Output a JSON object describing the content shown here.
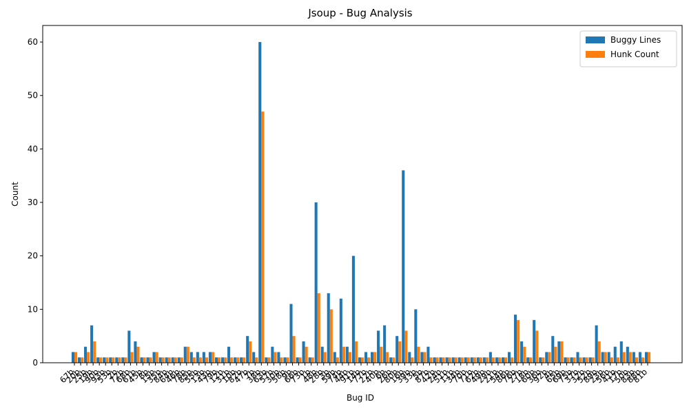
{
  "chart_data": {
    "type": "bar",
    "title": "Jsoup - Bug Analysis",
    "x_label": "Bug ID",
    "y_label": "Count",
    "categories": [
      "67b",
      "20b",
      "25b",
      "19b",
      "90b",
      "93b",
      "53b",
      "2b",
      "72b",
      "68b",
      "61b",
      "45b",
      "8b",
      "15b",
      "35b",
      "84b",
      "64b",
      "46b",
      "78b",
      "85b",
      "55b",
      "13b",
      "43b",
      "79b",
      "12b",
      "31b",
      "10b",
      "82b",
      "47b",
      "7b",
      "38b",
      "63b",
      "57b",
      "30b",
      "58b",
      "9b",
      "66b",
      "73b",
      "1b",
      "48b",
      "28b",
      "3b",
      "59b",
      "74b",
      "44b",
      "91b",
      "14b",
      "77b",
      "22b",
      "40b",
      "6b",
      "26b",
      "80b",
      "16b",
      "39b",
      "33b",
      "5b",
      "87b",
      "42b",
      "24b",
      "51b",
      "11b",
      "34b",
      "70b",
      "71b",
      "62b",
      "49b",
      "29b",
      "21b",
      "54b",
      "86b",
      "76b",
      "27b",
      "18b",
      "60b",
      "36b",
      "92b",
      "4b",
      "65b",
      "69b",
      "75b",
      "37b",
      "32b",
      "52b",
      "89b",
      "23b",
      "56b",
      "41b",
      "17b",
      "50b",
      "83b",
      "88b",
      "81b"
    ],
    "series": [
      {
        "name": "Buggy Lines",
        "color": "#1f77b4",
        "values": [
          2,
          1,
          3,
          7,
          1,
          1,
          1,
          1,
          1,
          6,
          4,
          1,
          1,
          2,
          1,
          1,
          1,
          1,
          3,
          2,
          2,
          2,
          2,
          1,
          1,
          3,
          1,
          1,
          5,
          2,
          60,
          1,
          3,
          2,
          1,
          11,
          1,
          4,
          1,
          30,
          3,
          13,
          2,
          12,
          3,
          20,
          1,
          2,
          2,
          6,
          7,
          1,
          5,
          36,
          2,
          10,
          2,
          3,
          1,
          1,
          1,
          1,
          1,
          1,
          1,
          1,
          1,
          2,
          1,
          1,
          2,
          9,
          4,
          1,
          8,
          1,
          2,
          5,
          4,
          1,
          1,
          2,
          1,
          1,
          7,
          2,
          2,
          3,
          4,
          3,
          2,
          2,
          2
        ]
      },
      {
        "name": "Hunk Count",
        "color": "#ff7f0e",
        "values": [
          2,
          1,
          2,
          4,
          1,
          1,
          1,
          1,
          1,
          2,
          3,
          1,
          1,
          2,
          1,
          1,
          1,
          1,
          3,
          1,
          1,
          1,
          2,
          1,
          1,
          1,
          1,
          1,
          4,
          1,
          47,
          1,
          2,
          1,
          1,
          5,
          1,
          3,
          1,
          13,
          2,
          10,
          1,
          3,
          2,
          4,
          1,
          1,
          2,
          3,
          2,
          1,
          4,
          6,
          1,
          3,
          2,
          1,
          1,
          1,
          1,
          1,
          1,
          1,
          1,
          1,
          1,
          1,
          1,
          1,
          1,
          8,
          3,
          1,
          6,
          1,
          2,
          3,
          4,
          1,
          1,
          1,
          1,
          1,
          4,
          2,
          1,
          1,
          2,
          2,
          1,
          1,
          2
        ]
      }
    ],
    "ylim": [
      0,
      63.1
    ],
    "yticks": [
      0,
      10,
      20,
      30,
      40,
      50,
      60
    ],
    "legend": "upper right"
  }
}
